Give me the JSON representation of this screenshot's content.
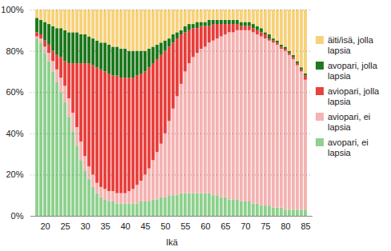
{
  "chart_data": {
    "type": "bar",
    "stacked": true,
    "grid": true,
    "legend": "right",
    "xlabel": "Ikä",
    "x": [
      18,
      19,
      20,
      21,
      22,
      23,
      24,
      25,
      26,
      27,
      28,
      29,
      30,
      31,
      32,
      33,
      34,
      35,
      36,
      37,
      38,
      39,
      40,
      41,
      42,
      43,
      44,
      45,
      46,
      47,
      48,
      49,
      50,
      51,
      52,
      53,
      54,
      55,
      56,
      57,
      58,
      59,
      60,
      61,
      62,
      63,
      64,
      65,
      66,
      67,
      68,
      69,
      70,
      71,
      72,
      73,
      74,
      75,
      76,
      77,
      78,
      79,
      80,
      81,
      82,
      83,
      84,
      85
    ],
    "xticks": [
      20,
      25,
      30,
      35,
      40,
      45,
      50,
      55,
      60,
      65,
      70,
      75,
      80,
      85
    ],
    "ylim": [
      0,
      100
    ],
    "yticks": [
      {
        "value": 0,
        "label": "0%"
      },
      {
        "value": 20,
        "label": "20%"
      },
      {
        "value": 40,
        "label": "40%"
      },
      {
        "value": 60,
        "label": "60%"
      },
      {
        "value": 80,
        "label": "80%"
      },
      {
        "value": 100,
        "label": "100%"
      }
    ],
    "series": [
      {
        "name": "avopari, ei lapsia",
        "color": "#8fd18f",
        "values": [
          86,
          84,
          79,
          75,
          70,
          65,
          60,
          55,
          48,
          41,
          34,
          27,
          22,
          18,
          14,
          11,
          9,
          8,
          7,
          7,
          6,
          6,
          6,
          6,
          6,
          6,
          7,
          7,
          7,
          8,
          8,
          9,
          9,
          10,
          10,
          10,
          11,
          11,
          11,
          11,
          11,
          11,
          11,
          11,
          10,
          10,
          9,
          9,
          8,
          8,
          8,
          7,
          7,
          7,
          6,
          6,
          5,
          5,
          5,
          4,
          4,
          4,
          3,
          3,
          3,
          3,
          3,
          3
        ]
      },
      {
        "name": "aviopari, ei lapsia",
        "color": "#f5b3b3",
        "values": [
          1,
          2,
          3,
          4,
          5,
          6,
          7,
          8,
          9,
          9,
          9,
          9,
          7,
          6,
          6,
          5,
          5,
          5,
          5,
          5,
          5,
          5,
          5,
          6,
          7,
          9,
          10,
          13,
          16,
          19,
          23,
          26,
          31,
          36,
          42,
          48,
          53,
          59,
          63,
          66,
          68,
          70,
          71,
          73,
          75,
          76,
          78,
          79,
          81,
          81,
          82,
          83,
          83,
          83,
          83,
          82,
          82,
          81,
          80,
          80,
          79,
          77,
          77,
          75,
          73,
          70,
          67,
          63
        ]
      },
      {
        "name": "aviopari, jolla lapsia",
        "color": "#e8423f",
        "values": [
          2,
          2,
          3,
          4,
          5,
          7,
          10,
          12,
          17,
          24,
          31,
          38,
          45,
          50,
          53,
          56,
          57,
          57,
          57,
          56,
          57,
          56,
          56,
          55,
          54,
          53,
          52,
          50,
          49,
          47,
          45,
          43,
          40,
          36,
          32,
          28,
          24,
          19,
          16,
          14,
          12,
          11,
          10,
          8,
          8,
          7,
          6,
          5,
          4,
          4,
          3,
          2,
          2,
          2,
          2,
          2,
          2,
          2,
          1,
          1,
          1,
          1,
          1,
          1,
          1,
          1,
          1,
          2
        ]
      },
      {
        "name": "avopari, jolla lapsia",
        "color": "#1f7a1f",
        "values": [
          7,
          7,
          9,
          10,
          12,
          13,
          14,
          15,
          15,
          15,
          15,
          14,
          14,
          13,
          13,
          13,
          13,
          14,
          14,
          14,
          14,
          14,
          14,
          13,
          13,
          12,
          11,
          10,
          9,
          8,
          7,
          6,
          5,
          4,
          4,
          3,
          2,
          3,
          3,
          2,
          3,
          2,
          2,
          3,
          2,
          2,
          2,
          2,
          2,
          2,
          2,
          2,
          2,
          2,
          2,
          2,
          2,
          1,
          2,
          1,
          1,
          1,
          1,
          1,
          1,
          1,
          1,
          1
        ]
      },
      {
        "name": "äiti/isä, jolla lapsia",
        "color": "#f7d27c",
        "values": [
          4,
          5,
          6,
          7,
          8,
          9,
          9,
          10,
          11,
          11,
          11,
          12,
          12,
          13,
          14,
          15,
          16,
          16,
          17,
          18,
          18,
          19,
          19,
          20,
          20,
          20,
          20,
          20,
          19,
          18,
          17,
          16,
          15,
          14,
          12,
          11,
          10,
          8,
          7,
          7,
          6,
          6,
          6,
          5,
          5,
          5,
          5,
          5,
          5,
          5,
          5,
          6,
          6,
          6,
          7,
          8,
          9,
          11,
          12,
          14,
          15,
          17,
          18,
          20,
          22,
          25,
          28,
          31
        ]
      }
    ]
  }
}
